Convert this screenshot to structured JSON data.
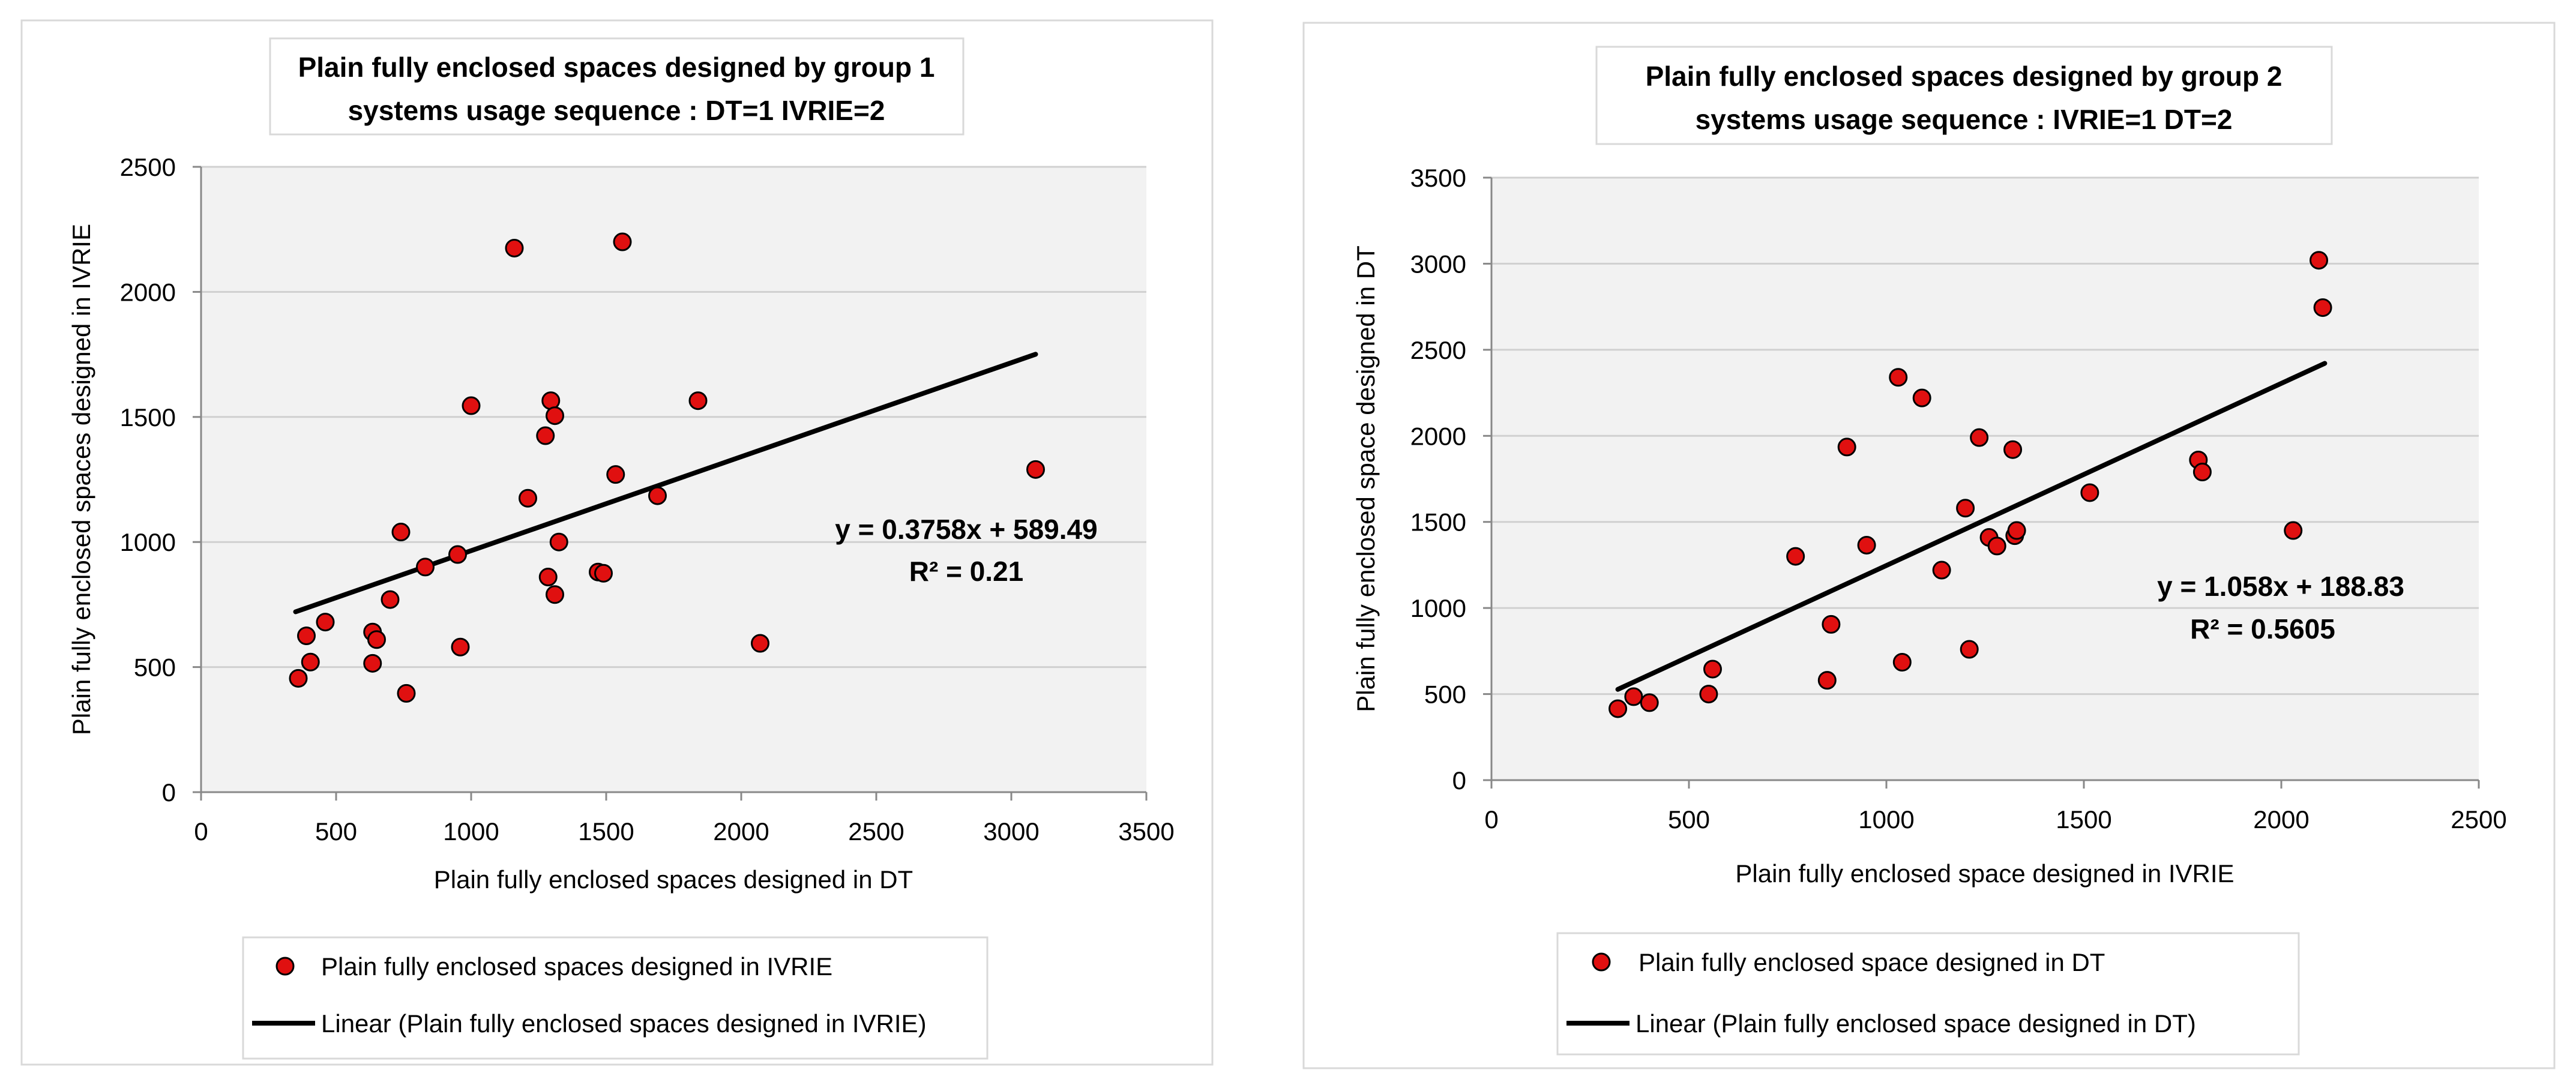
{
  "chart_data": [
    {
      "type": "scatter",
      "title_lines": [
        "Plain fully enclosed spaces designed by group 1",
        "systems usage sequence : DT=1  IVRIE=2"
      ],
      "xlabel": "Plain fully enclosed spaces designed in DT",
      "ylabel": "Plain fully enclosed spaces designed in IVRIE",
      "xlim": [
        0,
        3500
      ],
      "ylim": [
        0,
        2500
      ],
      "xticks": [
        0,
        500,
        1000,
        1500,
        2000,
        2500,
        3000,
        3500
      ],
      "yticks": [
        0,
        500,
        1000,
        1500,
        2000,
        2500
      ],
      "grid": true,
      "marker_color": "#e01010",
      "trend_color": "#000000",
      "series": [
        {
          "name": "Plain fully enclosed spaces designed in IVRIE",
          "points": [
            [
              360,
              455
            ],
            [
              390,
              625
            ],
            [
              405,
              520
            ],
            [
              460,
              680
            ],
            [
              635,
              640
            ],
            [
              635,
              515
            ],
            [
              650,
              610
            ],
            [
              700,
              770
            ],
            [
              740,
              1040
            ],
            [
              760,
              395
            ],
            [
              830,
              900
            ],
            [
              950,
              950
            ],
            [
              960,
              580
            ],
            [
              1000,
              1545
            ],
            [
              1160,
              2175
            ],
            [
              1210,
              1175
            ],
            [
              1275,
              1425
            ],
            [
              1285,
              860
            ],
            [
              1295,
              1565
            ],
            [
              1310,
              790
            ],
            [
              1310,
              1505
            ],
            [
              1325,
              1000
            ],
            [
              1470,
              880
            ],
            [
              1490,
              875
            ],
            [
              1535,
              1270
            ],
            [
              1560,
              2200
            ],
            [
              1690,
              1185
            ],
            [
              1840,
              1565
            ],
            [
              2070,
              595
            ],
            [
              3090,
              1290
            ]
          ]
        }
      ],
      "trendline": {
        "name": "Linear (Plain fully enclosed spaces designed in IVRIE)",
        "slope": 0.3758,
        "intercept": 589.49,
        "x_range": [
          350,
          3090
        ]
      },
      "equation_label": "y = 0.3758x + 589.49",
      "r2_label": "R² = 0.21",
      "legend_position": "bottom"
    },
    {
      "type": "scatter",
      "title_lines": [
        "Plain fully enclosed spaces designed by group 2",
        "systems usage sequence : IVRIE=1 DT=2"
      ],
      "xlabel": "Plain fully enclosed space designed in IVRIE",
      "ylabel": "Plain fully enclosed space designed in DT",
      "xlim": [
        0,
        2500
      ],
      "ylim": [
        0,
        3500
      ],
      "xticks": [
        0,
        500,
        1000,
        1500,
        2000,
        2500
      ],
      "yticks": [
        0,
        500,
        1000,
        1500,
        2000,
        2500,
        3000,
        3500
      ],
      "grid": true,
      "marker_color": "#e01010",
      "trend_color": "#000000",
      "series": [
        {
          "name": "Plain fully enclosed space designed in DT",
          "points": [
            [
              320,
              415
            ],
            [
              360,
              485
            ],
            [
              400,
              450
            ],
            [
              550,
              500
            ],
            [
              560,
              645
            ],
            [
              770,
              1300
            ],
            [
              850,
              580
            ],
            [
              860,
              905
            ],
            [
              900,
              1935
            ],
            [
              950,
              1365
            ],
            [
              1030,
              2340
            ],
            [
              1040,
              685
            ],
            [
              1090,
              2220
            ],
            [
              1140,
              1220
            ],
            [
              1200,
              1580
            ],
            [
              1210,
              760
            ],
            [
              1235,
              1990
            ],
            [
              1260,
              1410
            ],
            [
              1280,
              1360
            ],
            [
              1320,
              1920
            ],
            [
              1325,
              1420
            ],
            [
              1330,
              1450
            ],
            [
              1515,
              1670
            ],
            [
              1790,
              1860
            ],
            [
              1800,
              1790
            ],
            [
              2030,
              1450
            ],
            [
              2095,
              3020
            ],
            [
              2105,
              2745
            ]
          ]
        }
      ],
      "trendline": {
        "name": "Linear (Plain fully enclosed space designed in DT)",
        "slope": 1.058,
        "intercept": 188.83,
        "x_range": [
          320,
          2110
        ]
      },
      "equation_label": "y = 1.058x + 188.83",
      "r2_label": "R² = 0.5605",
      "legend_position": "bottom"
    }
  ]
}
